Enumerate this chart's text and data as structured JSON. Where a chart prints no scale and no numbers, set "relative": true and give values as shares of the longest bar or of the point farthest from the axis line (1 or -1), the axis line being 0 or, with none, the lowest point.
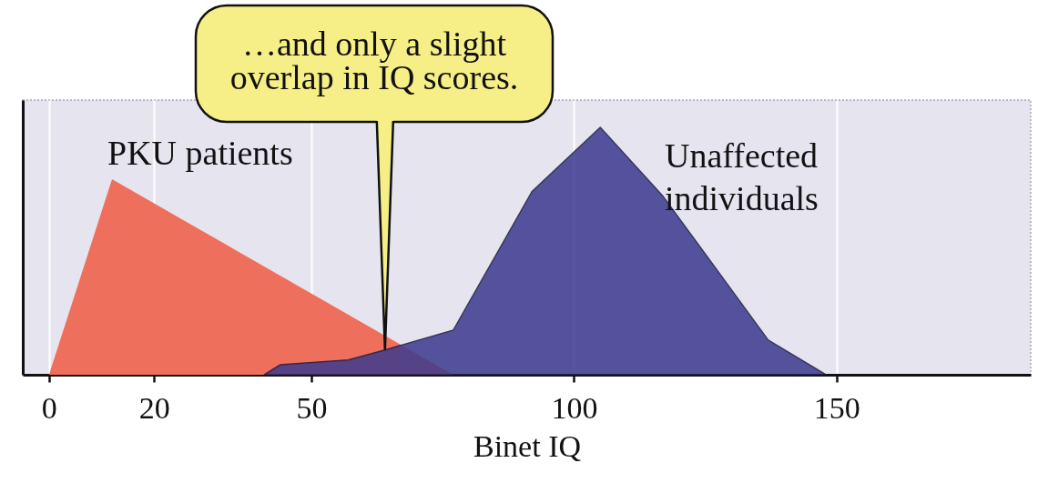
{
  "chart_data": {
    "type": "area",
    "xlabel": "Binet IQ",
    "relative": true,
    "xlim": [
      -5,
      187
    ],
    "xticks": [
      0,
      20,
      50,
      100,
      150
    ],
    "grid": "x",
    "series": [
      {
        "name": "PKU patients",
        "color": "#ee705c",
        "x": [
          0,
          12,
          77
        ],
        "values": [
          0,
          0.79,
          0
        ]
      },
      {
        "name": "Unaffected\nindividuals",
        "color": "#3d3b8f",
        "x": [
          41,
          44,
          57,
          64,
          77,
          92,
          105,
          117,
          137,
          148
        ],
        "values": [
          0,
          0.04,
          0.06,
          0.1,
          0.18,
          0.74,
          1,
          0.72,
          0.14,
          0
        ]
      }
    ],
    "annotations": [
      {
        "text": "…and only a slight\noverlap in IQ scores.",
        "x": 64,
        "y": 0.1
      }
    ]
  }
}
